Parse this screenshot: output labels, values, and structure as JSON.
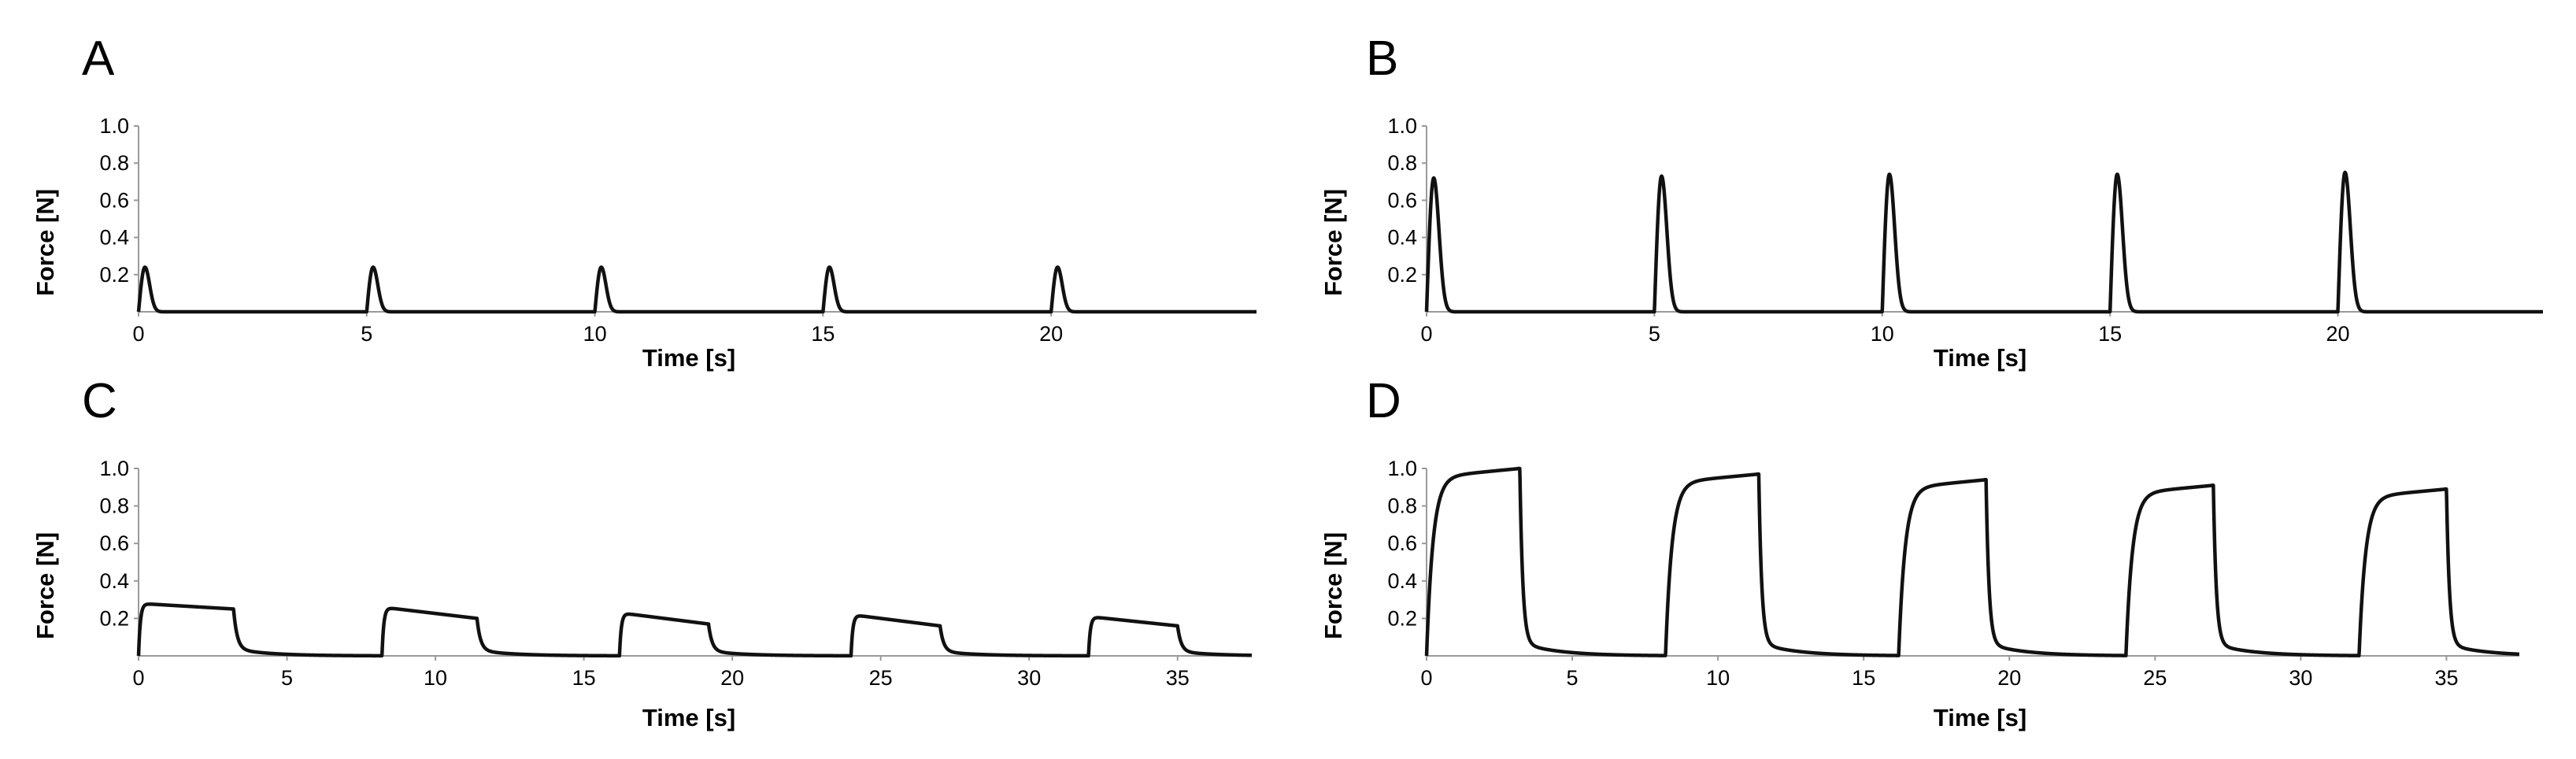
{
  "chart_data": [
    {
      "panel": "A",
      "type": "line",
      "xlabel": "Time [s]",
      "ylabel": "Force [N]",
      "xlim": [
        0,
        24.5
      ],
      "ylim": [
        0,
        1.0
      ],
      "xticks": [
        0,
        5,
        10,
        15,
        20
      ],
      "yticks": [
        0.2,
        0.4,
        0.6,
        0.8,
        1.0
      ],
      "pulse_shape": "twitch",
      "pulse_width_s": 0.4,
      "pulses": [
        {
          "start": 0.0,
          "peak": 0.24
        },
        {
          "start": 5.0,
          "peak": 0.24
        },
        {
          "start": 10.0,
          "peak": 0.24
        },
        {
          "start": 15.0,
          "peak": 0.24
        },
        {
          "start": 20.0,
          "peak": 0.24
        }
      ]
    },
    {
      "panel": "B",
      "type": "line",
      "xlabel": "Time [s]",
      "ylabel": "Force [N]",
      "xlim": [
        0,
        24.5
      ],
      "ylim": [
        0,
        1.0
      ],
      "xticks": [
        0,
        5,
        10,
        15,
        20
      ],
      "yticks": [
        0.2,
        0.4,
        0.6,
        0.8,
        1.0
      ],
      "pulse_shape": "twitch",
      "pulse_width_s": 0.45,
      "pulses": [
        {
          "start": 0.0,
          "peak": 0.72
        },
        {
          "start": 5.0,
          "peak": 0.73
        },
        {
          "start": 10.0,
          "peak": 0.74
        },
        {
          "start": 15.0,
          "peak": 0.74
        },
        {
          "start": 20.0,
          "peak": 0.75
        }
      ]
    },
    {
      "panel": "C",
      "type": "line",
      "xlabel": "Time [s]",
      "ylabel": "Force [N]",
      "xlim": [
        0,
        37.5
      ],
      "ylim": [
        0,
        1.0
      ],
      "xticks": [
        0,
        5,
        10,
        15,
        20,
        25,
        30,
        35
      ],
      "yticks": [
        0.2,
        0.4,
        0.6,
        0.8,
        1.0
      ],
      "pulse_shape": "tetanus",
      "pulses": [
        {
          "start": 0.0,
          "end": 3.2,
          "plateau_start": 0.28,
          "plateau_end": 0.25
        },
        {
          "start": 8.2,
          "end": 11.4,
          "plateau_start": 0.26,
          "plateau_end": 0.2
        },
        {
          "start": 16.2,
          "end": 19.2,
          "plateau_start": 0.23,
          "plateau_end": 0.17
        },
        {
          "start": 24.0,
          "end": 27.0,
          "plateau_start": 0.22,
          "plateau_end": 0.16
        },
        {
          "start": 32.0,
          "end": 35.0,
          "plateau_start": 0.21,
          "plateau_end": 0.16
        }
      ]
    },
    {
      "panel": "D",
      "type": "line",
      "xlabel": "Time [s]",
      "ylabel": "Force [N]",
      "xlim": [
        0,
        37.5
      ],
      "ylim": [
        0,
        1.0
      ],
      "xticks": [
        0,
        5,
        10,
        15,
        20,
        25,
        30,
        35
      ],
      "yticks": [
        0.2,
        0.4,
        0.6,
        0.8,
        1.0
      ],
      "pulse_shape": "tetanus_rising",
      "pulses": [
        {
          "start": 0.0,
          "end": 3.2,
          "peak": 1.0
        },
        {
          "start": 8.2,
          "end": 11.4,
          "peak": 0.97
        },
        {
          "start": 16.2,
          "end": 19.2,
          "peak": 0.94
        },
        {
          "start": 24.0,
          "end": 27.0,
          "peak": 0.91
        },
        {
          "start": 32.0,
          "end": 35.0,
          "peak": 0.89
        }
      ]
    }
  ]
}
